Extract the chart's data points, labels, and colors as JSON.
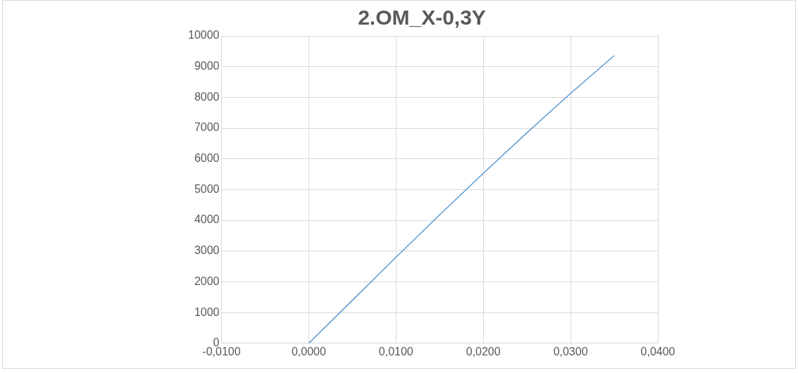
{
  "chart_data": {
    "type": "line",
    "title": "2.OM_X-0,3Y",
    "x": [
      0,
      0.005,
      0.01,
      0.015,
      0.02,
      0.025,
      0.03,
      0.035
    ],
    "series": [
      {
        "color": "#5b9bd5",
        "values": [
          0,
          1400,
          2800,
          4180,
          5530,
          6850,
          8130,
          9360
        ]
      }
    ],
    "xlim": [
      -0.01,
      0.04
    ],
    "xticks": [
      {
        "value": -0.01,
        "label": "-0,0100"
      },
      {
        "value": 0,
        "label": "0,0000"
      },
      {
        "value": 0.01,
        "label": "0,0100"
      },
      {
        "value": 0.02,
        "label": "0,0200"
      },
      {
        "value": 0.03,
        "label": "0,0300"
      },
      {
        "value": 0.04,
        "label": "0,0400"
      }
    ],
    "ylim": [
      0,
      10000
    ],
    "yticks": [
      0,
      1000,
      2000,
      3000,
      4000,
      5000,
      6000,
      7000,
      8000,
      9000,
      10000
    ],
    "grid": true,
    "legend": false,
    "marker": "none",
    "line_style": "solid"
  }
}
